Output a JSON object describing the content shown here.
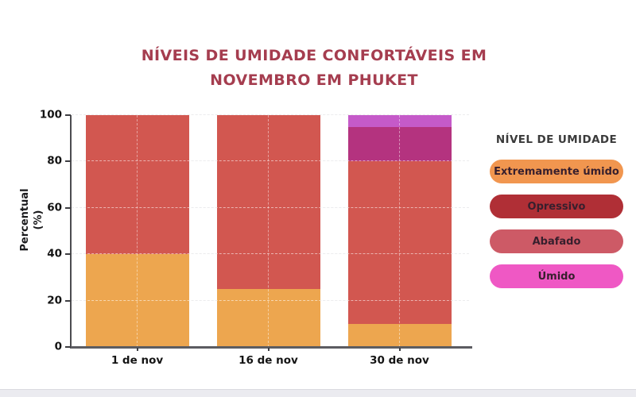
{
  "title": {
    "line1": "NÍVEIS DE UMIDADE CONFORTÁVEIS EM",
    "line2": "NOVEMBRO EM PHUKET",
    "color": "#A53D4F"
  },
  "chart_data": {
    "type": "bar",
    "stacked": true,
    "title": "NÍVEIS DE UMIDADE CONFORTÁVEIS EM NOVEMBRO EM PHUKET",
    "categories": [
      "1 de nov",
      "16 de nov",
      "30 de nov"
    ],
    "series": [
      {
        "name": "Extremamente úmido",
        "values": [
          40,
          25,
          10
        ],
        "color": "#EDA64F"
      },
      {
        "name": "Opressivo",
        "values": [
          60,
          75,
          70
        ],
        "color": "#D25750"
      },
      {
        "name": "Abafado",
        "values": [
          0,
          0,
          15
        ],
        "color": "#B4337F"
      },
      {
        "name": "Úmido",
        "values": [
          0,
          0,
          5
        ],
        "color": "#C55AC9"
      }
    ],
    "xlabel": "",
    "ylabel": "Percentual (%)",
    "ylabel_lines": [
      "Percentual",
      "(%)"
    ],
    "ylim": [
      0,
      100
    ],
    "yticks": [
      0,
      20,
      40,
      60,
      80,
      100
    ],
    "grid": "dashed horizontal and vertical center lines",
    "legend_position": "right"
  },
  "legend": {
    "title": "NÍVEL DE UMIDADE",
    "items": [
      {
        "label": "Extremamente úmido",
        "color": "#F1964F"
      },
      {
        "label": "Opressivo",
        "color": "#B02F36"
      },
      {
        "label": "Abafado",
        "color": "#CD5A66"
      },
      {
        "label": "Úmido",
        "color": "#EF58C4"
      }
    ]
  }
}
